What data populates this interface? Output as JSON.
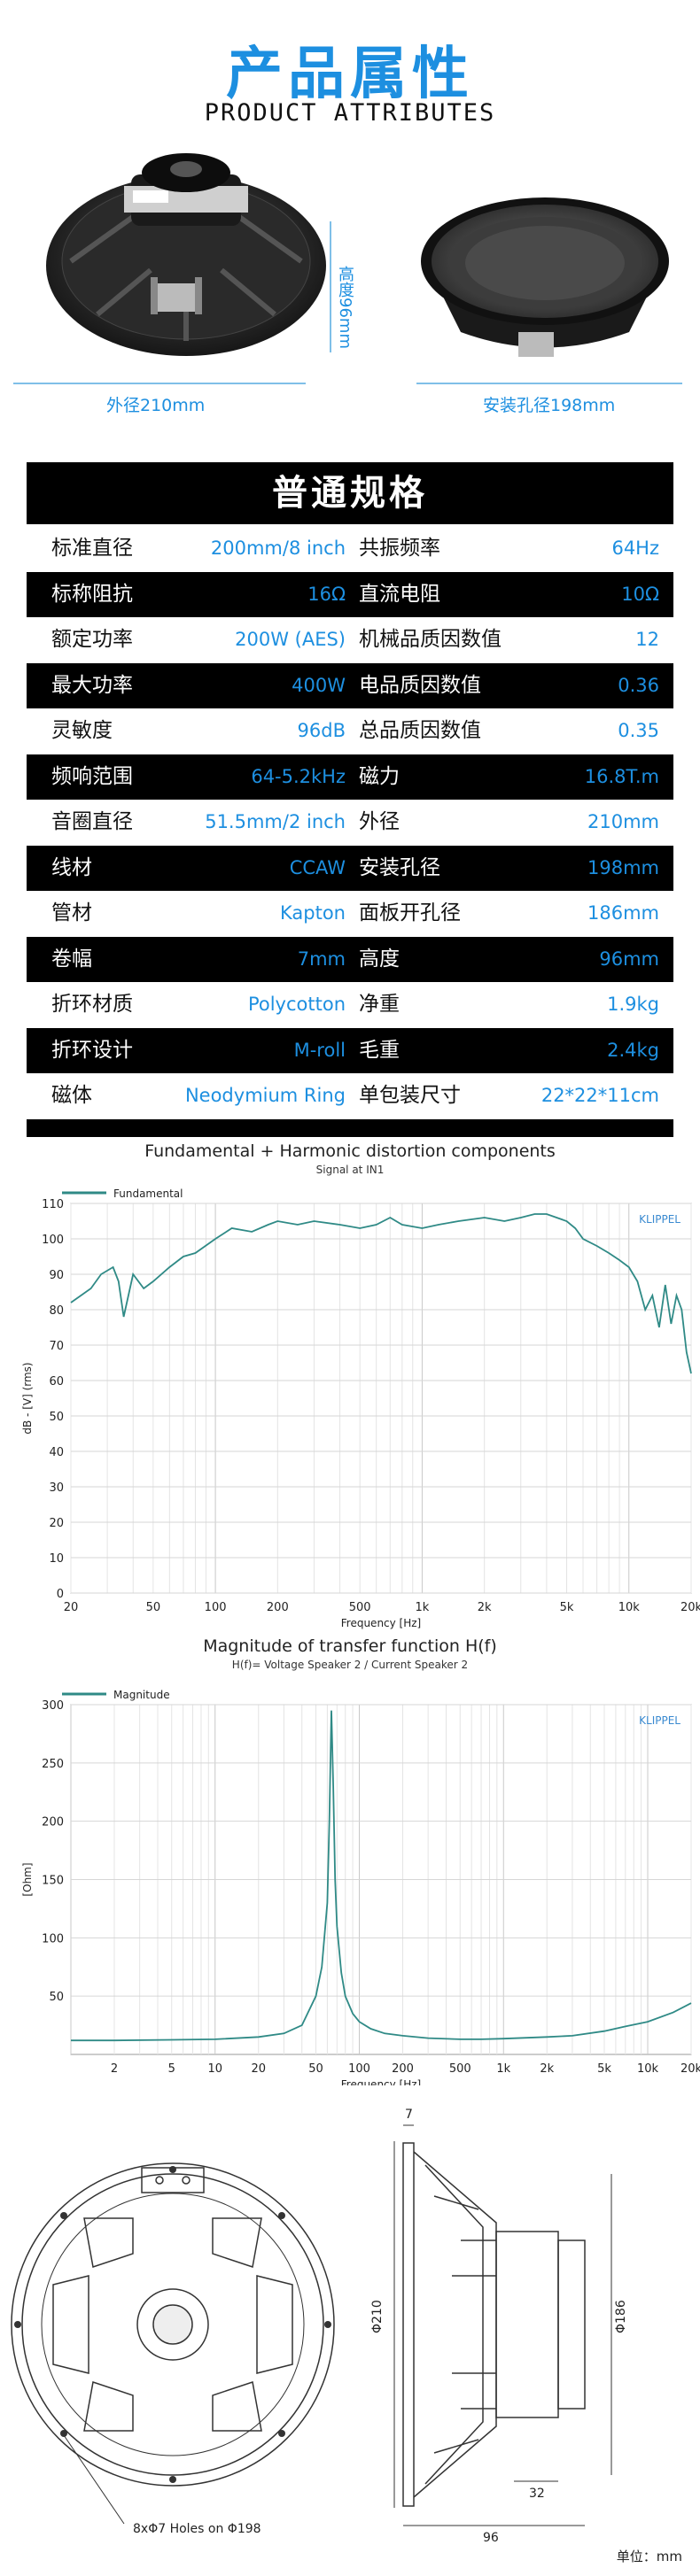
{
  "header": {
    "title_cn": "产品属性",
    "title_en": "PRODUCT ATTRIBUTES"
  },
  "photos": {
    "outer_diameter": "外径210mm",
    "height": "高度96mm",
    "mount_hole": "安装孔径198mm"
  },
  "specs": {
    "heading": "普通规格",
    "rows": [
      {
        "l1": "标准直径",
        "v1": "200mm/8 inch",
        "l2": "共振频率",
        "v2": "64Hz"
      },
      {
        "l1": "标称阻抗",
        "v1": "16Ω",
        "l2": "直流电阻",
        "v2": "10Ω"
      },
      {
        "l1": "额定功率",
        "v1": "200W (AES)",
        "l2": "机械品质因数值",
        "v2": "12"
      },
      {
        "l1": "最大功率",
        "v1": "400W",
        "l2": "电品质因数值",
        "v2": "0.36"
      },
      {
        "l1": "灵敏度",
        "v1": "96dB",
        "l2": "总品质因数值",
        "v2": "0.35"
      },
      {
        "l1": "频响范围",
        "v1": "64-5.2kHz",
        "l2": "磁力",
        "v2": "16.8T.m"
      },
      {
        "l1": "音圈直径",
        "v1": "51.5mm/2 inch",
        "l2": "外径",
        "v2": "210mm"
      },
      {
        "l1": "线材",
        "v1": "CCAW",
        "l2": "安装孔径",
        "v2": "198mm"
      },
      {
        "l1": "管材",
        "v1": "Kapton",
        "l2": "面板开孔径",
        "v2": "186mm"
      },
      {
        "l1": "卷幅",
        "v1": "7mm",
        "l2": "高度",
        "v2": "96mm"
      },
      {
        "l1": "折环材质",
        "v1": "Polycotton",
        "l2": "净重",
        "v2": "1.9kg"
      },
      {
        "l1": "折环设计",
        "v1": "M-roll",
        "l2": "毛重",
        "v2": "2.4kg"
      },
      {
        "l1": "磁体",
        "v1": "Neodymium Ring",
        "l2": "单包装尺寸",
        "v2": "22*22*11cm"
      }
    ]
  },
  "chart_data": [
    {
      "type": "line",
      "title": "Fundamental + Harmonic distortion components",
      "subtitle": "Signal at IN1",
      "xlabel": "Frequency [Hz]",
      "ylabel": "dB - [V] (rms)",
      "xscale": "log",
      "xlim": [
        20,
        20000
      ],
      "ylim": [
        0,
        110
      ],
      "xticks": [
        "20",
        "50",
        "100",
        "200",
        "500",
        "1k",
        "2k",
        "5k",
        "10k",
        "20k"
      ],
      "yticks": [
        "0",
        "10",
        "20",
        "30",
        "40",
        "50",
        "60",
        "70",
        "80",
        "90",
        "100",
        "110"
      ],
      "legend": "top-left",
      "watermark": "KLIPPEL",
      "series": [
        {
          "name": "Fundamental",
          "color": "#2f8a86",
          "x": [
            20,
            25,
            28,
            32,
            34,
            36,
            40,
            45,
            50,
            60,
            70,
            80,
            100,
            120,
            150,
            180,
            200,
            250,
            300,
            400,
            500,
            600,
            700,
            800,
            1000,
            1200,
            1500,
            2000,
            2500,
            3000,
            3500,
            4000,
            5000,
            5500,
            6000,
            7000,
            8000,
            9000,
            10000,
            11000,
            12000,
            13000,
            14000,
            15000,
            16000,
            17000,
            18000,
            19000,
            20000
          ],
          "y": [
            82,
            86,
            90,
            92,
            88,
            78,
            90,
            86,
            88,
            92,
            95,
            96,
            100,
            103,
            102,
            104,
            105,
            104,
            105,
            104,
            103,
            104,
            106,
            104,
            103,
            104,
            105,
            106,
            105,
            106,
            107,
            107,
            105,
            103,
            100,
            98,
            96,
            94,
            92,
            88,
            80,
            84,
            75,
            87,
            76,
            84,
            80,
            68,
            62
          ]
        }
      ]
    },
    {
      "type": "line",
      "title": "Magnitude of transfer function H(f)",
      "subtitle": "H(f)= Voltage Speaker 2 / Current Speaker 2",
      "xlabel": "Frequency [Hz]",
      "ylabel": "[Ohm]",
      "xscale": "log",
      "xlim": [
        1,
        20000
      ],
      "ylim": [
        0,
        300
      ],
      "xticks": [
        "2",
        "5",
        "10",
        "20",
        "50",
        "100",
        "200",
        "500",
        "1k",
        "2k",
        "5k",
        "10k",
        "20k"
      ],
      "yticks": [
        "50",
        "100",
        "150",
        "200",
        "250",
        "300"
      ],
      "legend": "top-left",
      "watermark": "KLIPPEL",
      "series": [
        {
          "name": "Magnitude",
          "color": "#2f8a86",
          "x": [
            1,
            2,
            5,
            10,
            20,
            30,
            40,
            50,
            55,
            60,
            62,
            64,
            66,
            68,
            70,
            75,
            80,
            90,
            100,
            120,
            150,
            200,
            300,
            500,
            700,
            1000,
            2000,
            3000,
            5000,
            7000,
            10000,
            15000,
            20000
          ],
          "y": [
            12,
            12,
            12.5,
            13,
            15,
            18,
            25,
            50,
            75,
            130,
            200,
            295,
            230,
            150,
            110,
            70,
            50,
            35,
            28,
            22,
            18,
            16,
            14,
            13,
            13,
            13.5,
            15,
            16,
            20,
            24,
            28,
            36,
            44
          ]
        }
      ]
    }
  ],
  "drawing": {
    "holes": "8xΦ7 Holes on Φ198",
    "dim_210": "Φ210",
    "dim_186": "Φ186",
    "dim_7": "7",
    "dim_32": "32",
    "dim_96": "96"
  },
  "footer": {
    "unit": "单位：mm"
  }
}
